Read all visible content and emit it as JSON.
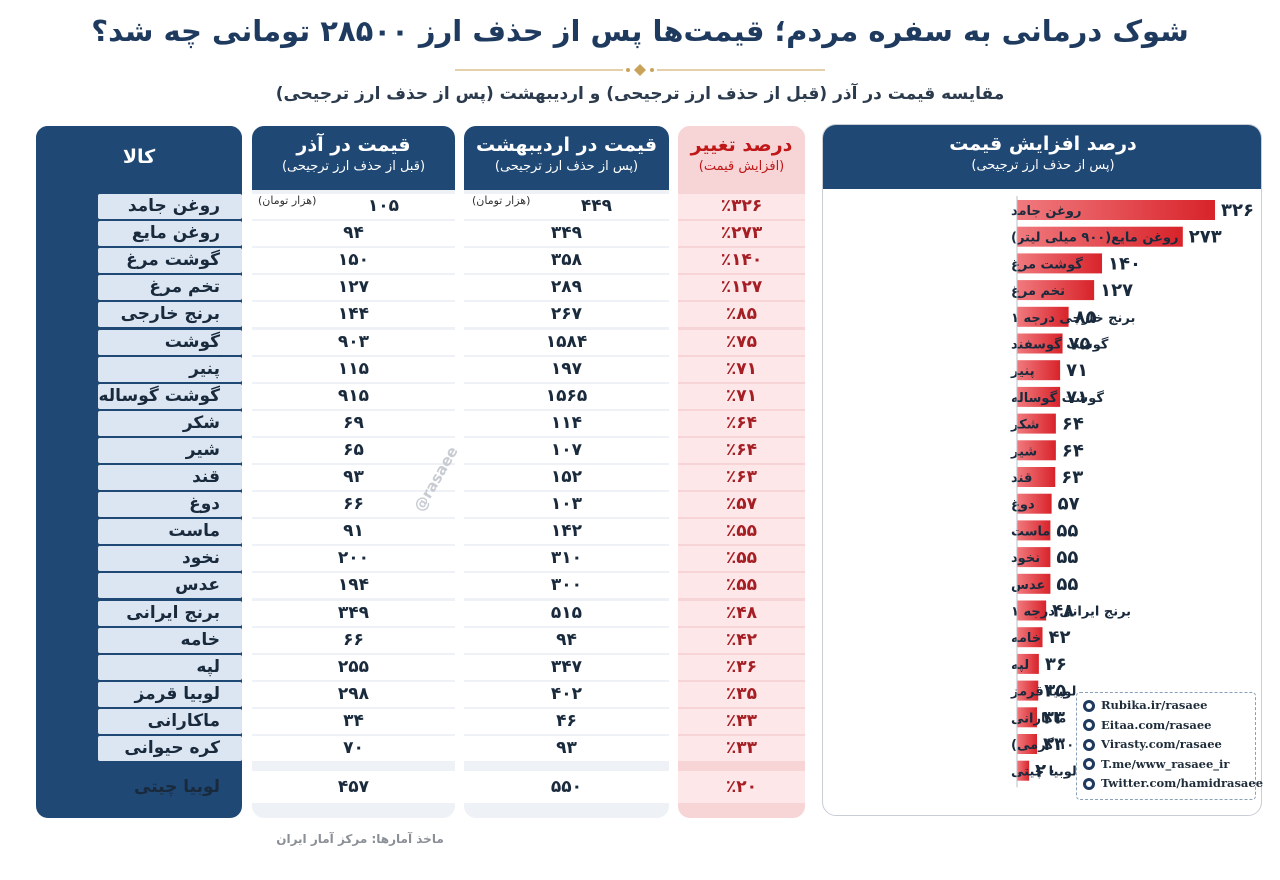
{
  "title": "شوک درمانی به سفره مردم؛ قیمت‌ها پس از حذف ارز ۲۸۵۰۰ تومانی چه شد؟",
  "subtitle": "مقایسه قیمت در آذر (قبل از حذف ارز ترجیحی) و اردیبهشت (پس از حذف ارز ترجیحی)",
  "table": {
    "headers": {
      "item": "کالا",
      "azar": "قیمت در آذر",
      "azar_sub": "(قبل از حذف ارز ترجیحی)",
      "ord": "قیمت در اردیبهشت",
      "ord_sub": "(پس از حذف ارز ترجیحی)",
      "pct": "درصد تغییر",
      "pct_sub": "(افزایش قیمت)"
    },
    "unit_label": "(هزار تومان)",
    "rows": [
      {
        "item": "روغن جامد",
        "azar": "۱۰۵",
        "ord": "۴۴۹",
        "pct": "٪۳۲۶"
      },
      {
        "item": "روغن مایع",
        "azar": "۹۴",
        "ord": "۳۴۹",
        "pct": "٪۲۷۳"
      },
      {
        "item": "گوشت مرغ",
        "azar": "۱۵۰",
        "ord": "۳۵۸",
        "pct": "٪۱۴۰"
      },
      {
        "item": "تخم مرغ",
        "azar": "۱۲۷",
        "ord": "۲۸۹",
        "pct": "٪۱۲۷"
      },
      {
        "item": "برنج خارجی",
        "azar": "۱۴۴",
        "ord": "۲۶۷",
        "pct": "٪۸۵"
      },
      {
        "item": "گوشت گوسفند",
        "azar": "۹۰۳",
        "ord": "۱۵۸۴",
        "pct": "٪۷۵"
      },
      {
        "item": "پنیر",
        "azar": "۱۱۵",
        "ord": "۱۹۷",
        "pct": "٪۷۱"
      },
      {
        "item": "گوشت گوساله",
        "azar": "۹۱۵",
        "ord": "۱۵۶۵",
        "pct": "٪۷۱"
      },
      {
        "item": "شکر",
        "azar": "۶۹",
        "ord": "۱۱۴",
        "pct": "٪۶۴"
      },
      {
        "item": "شیر",
        "azar": "۶۵",
        "ord": "۱۰۷",
        "pct": "٪۶۴"
      },
      {
        "item": "قند",
        "azar": "۹۳",
        "ord": "۱۵۲",
        "pct": "٪۶۳"
      },
      {
        "item": "دوغ",
        "azar": "۶۶",
        "ord": "۱۰۳",
        "pct": "٪۵۷"
      },
      {
        "item": "ماست",
        "azar": "۹۱",
        "ord": "۱۴۲",
        "pct": "٪۵۵"
      },
      {
        "item": "نخود",
        "azar": "۲۰۰",
        "ord": "۳۱۰",
        "pct": "٪۵۵"
      },
      {
        "item": "عدس",
        "azar": "۱۹۴",
        "ord": "۳۰۰",
        "pct": "٪۵۵"
      },
      {
        "item": "برنج ایرانی",
        "azar": "۳۴۹",
        "ord": "۵۱۵",
        "pct": "٪۴۸"
      },
      {
        "item": "خامه",
        "azar": "۶۶",
        "ord": "۹۴",
        "pct": "٪۴۲"
      },
      {
        "item": "لپه",
        "azar": "۲۵۵",
        "ord": "۳۴۷",
        "pct": "٪۳۶"
      },
      {
        "item": "لوبیا قرمز",
        "azar": "۲۹۸",
        "ord": "۴۰۲",
        "pct": "٪۳۵"
      },
      {
        "item": "ماکارانی",
        "azar": "۳۴",
        "ord": "۴۶",
        "pct": "٪۳۳"
      },
      {
        "item": "کره حیوانی",
        "azar": "۷۰",
        "ord": "۹۳",
        "pct": "٪۳۳"
      },
      {
        "item": "لوبیا چیتی",
        "azar": "۴۵۷",
        "ord": "۵۵۰",
        "pct": "٪۲۰"
      }
    ]
  },
  "source": "ماخذ آمارها: مرکز آمار ایران",
  "watermark": "@rasaee",
  "chart_header": {
    "title": "درصد افزایش قیمت",
    "subtitle": "(پس از حذف ارز ترجیحی)"
  },
  "chart_data": {
    "type": "bar",
    "orientation": "horizontal",
    "title": "درصد افزایش قیمت",
    "subtitle": "(پس از حذف ارز ترجیحی)",
    "categories": [
      "روغن جامد",
      "روغن مایع(۹۰۰ میلی لیتر)",
      "گوشت مرغ",
      "تخم مرغ",
      "برنج خارجی درجه ۱",
      "گوشت گوسفند",
      "پنیر",
      "گوشت گوساله",
      "شکر",
      "شیر",
      "قند",
      "دوغ",
      "ماست",
      "نخود",
      "عدس",
      "برنج ایرانی درجه ۱",
      "خامه",
      "لپه",
      "لوبیا قرمز",
      "ماکارانی",
      "کره حیوانی(۱۰۰ گرمی)",
      "لوبیا چیتی"
    ],
    "values": [
      326,
      273,
      140,
      127,
      85,
      75,
      71,
      71,
      64,
      64,
      63,
      57,
      55,
      55,
      55,
      48,
      42,
      36,
      35,
      33,
      33,
      20
    ],
    "value_labels": [
      "۳۲۶",
      "۲۷۳",
      "۱۴۰",
      "۱۲۷",
      "۸۵",
      "۷۵",
      "۷۱",
      "۷۱",
      "۶۴",
      "۶۴",
      "۶۳",
      "۵۷",
      "۵۵",
      "۵۵",
      "۵۵",
      "۴۸",
      "۴۲",
      "۳۶",
      "۳۵",
      "۳۳",
      "۳۳",
      "۲۰"
    ],
    "bar_color": "#d8232a",
    "grid": false
  },
  "colors": {
    "navy": "#1f4874",
    "red": "#c01818",
    "pink": "#f7d5d7"
  },
  "social": [
    {
      "icon": "rubika-icon",
      "text": "Rubika.ir/rasaee"
    },
    {
      "icon": "eitaa-icon",
      "text": "Eitaa.com/rasaee"
    },
    {
      "icon": "globe-icon",
      "text": "Virasty.com/rasaee"
    },
    {
      "icon": "telegram-icon",
      "text": "T.me/www_rasaee_ir"
    },
    {
      "icon": "twitter-icon",
      "text": "Twitter.com/hamidrasaee"
    }
  ]
}
